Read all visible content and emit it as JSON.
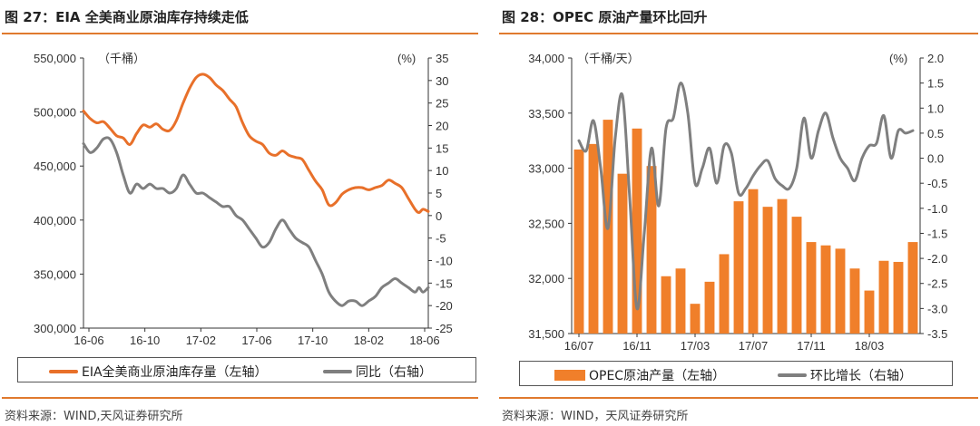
{
  "left": {
    "title": "图 27：EIA 全美商业原油库存持续走低",
    "source": "资料来源：WIND,天风证券研究所",
    "legend": [
      "EIA全美商业原油库存量（左轴）",
      "同比（右轴）"
    ],
    "colors": {
      "primary": "#e8702a",
      "secondary": "#7f7f7f"
    },
    "chart_data": {
      "type": "line",
      "left_unit": "（千桶）",
      "right_unit": "(%)",
      "x_ticks": [
        "16-06",
        "16-10",
        "17-02",
        "17-06",
        "17-10",
        "18-02",
        "18-06"
      ],
      "x_range": [
        0,
        26
      ],
      "left_axis": {
        "min": 300000,
        "max": 550000,
        "ticks": [
          "550,000",
          "500,000",
          "450,000",
          "400,000",
          "350,000",
          "300,000"
        ],
        "tick_values": [
          550000,
          500000,
          450000,
          400000,
          350000,
          300000
        ]
      },
      "right_axis": {
        "min": -25,
        "max": 35,
        "ticks": [
          "35",
          "30",
          "25",
          "20",
          "15",
          "10",
          "5",
          "0",
          "-5",
          "-10",
          "-15",
          "-20",
          "-25"
        ],
        "tick_values": [
          35,
          30,
          25,
          20,
          15,
          10,
          5,
          0,
          -5,
          -10,
          -15,
          -20,
          -25
        ]
      },
      "series": [
        {
          "name": "EIA全美商业原油库存量",
          "axis": "left",
          "x": [
            0,
            0.5,
            1.0,
            1.5,
            2.0,
            2.5,
            3.0,
            3.5,
            4.0,
            4.5,
            5.0,
            5.5,
            6.0,
            6.5,
            7.0,
            7.5,
            8.0,
            8.5,
            9.0,
            9.5,
            10.0,
            10.5,
            11.0,
            11.5,
            12.0,
            12.5,
            13.0,
            13.5,
            14.0,
            14.5,
            15.0,
            15.5,
            16.0,
            16.5,
            17.0,
            17.5,
            18.0,
            18.5,
            19.0,
            19.5,
            20.0,
            20.5,
            21.0,
            21.5,
            22.0,
            22.5,
            23.0,
            23.5,
            24.0,
            24.5,
            25.0,
            25.3,
            25.6,
            26.0
          ],
          "values": [
            501000,
            494000,
            490000,
            491000,
            485000,
            478000,
            476000,
            470000,
            480000,
            488000,
            486000,
            489000,
            484000,
            483000,
            492000,
            508000,
            522000,
            532000,
            535000,
            532000,
            525000,
            520000,
            512000,
            505000,
            490000,
            478000,
            473000,
            470000,
            462000,
            460000,
            464000,
            460000,
            458000,
            456000,
            446000,
            436000,
            428000,
            414000,
            416000,
            424000,
            428000,
            430000,
            430000,
            428000,
            430000,
            432000,
            437000,
            434000,
            430000,
            420000,
            410000,
            407000,
            410000,
            408000
          ]
        },
        {
          "name": "同比",
          "axis": "right",
          "x": [
            0,
            0.5,
            1.0,
            1.5,
            2.0,
            2.5,
            3.0,
            3.5,
            4.0,
            4.5,
            5.0,
            5.5,
            6.0,
            6.5,
            7.0,
            7.5,
            8.0,
            8.5,
            9.0,
            9.5,
            10.0,
            10.5,
            11.0,
            11.5,
            12.0,
            12.5,
            13.0,
            13.5,
            14.0,
            14.5,
            15.0,
            15.5,
            16.0,
            16.5,
            17.0,
            17.5,
            18.0,
            18.5,
            19.0,
            19.5,
            20.0,
            20.5,
            21.0,
            21.5,
            22.0,
            22.5,
            23.0,
            23.5,
            24.0,
            24.5,
            25.0,
            25.3,
            25.6,
            26.0
          ],
          "values": [
            16,
            14,
            15,
            17,
            17,
            14,
            9,
            5,
            7,
            6,
            7,
            6,
            6,
            5,
            6,
            9,
            7,
            5,
            5,
            4,
            3,
            2,
            2,
            0,
            -1,
            -3,
            -5,
            -7,
            -6,
            -3,
            -1,
            -3,
            -5,
            -6,
            -7,
            -10,
            -13,
            -17,
            -19,
            -20,
            -19,
            -19,
            -20,
            -19,
            -18,
            -16,
            -15,
            -14,
            -15,
            -16,
            -17,
            -16,
            -17,
            -16
          ]
        }
      ]
    }
  },
  "right": {
    "title": "图 28：OPEC 原油产量环比回升",
    "source": "资料来源：WIND，天风证券研究所",
    "legend": [
      "OPEC原油产量（左轴）",
      "环比增长（右轴）"
    ],
    "colors": {
      "primary": "#f07f2a",
      "secondary": "#7f7f7f"
    },
    "chart_data": {
      "type": "bar+line",
      "left_unit": "（千桶/天）",
      "right_unit": "(%)",
      "x_ticks": [
        "16/07",
        "16/11",
        "17/03",
        "17/07",
        "17/11",
        "18/03"
      ],
      "x_tick_index": [
        0,
        4,
        8,
        12,
        16,
        20
      ],
      "categories": [
        "2016-07",
        "2016-08",
        "2016-09",
        "2016-10",
        "2016-11",
        "2016-12",
        "2017-01",
        "2017-02",
        "2017-03",
        "2017-04",
        "2017-05",
        "2017-06",
        "2017-07",
        "2017-08",
        "2017-09",
        "2017-10",
        "2017-11",
        "2017-12",
        "2018-01",
        "2018-02",
        "2018-03",
        "2018-04",
        "2018-05",
        "2018-06"
      ],
      "left_axis": {
        "min": 31500,
        "max": 34000,
        "ticks": [
          "34,000",
          "33,500",
          "33,000",
          "32,500",
          "32,000",
          "31,500"
        ],
        "tick_values": [
          34000,
          33500,
          33000,
          32500,
          32000,
          31500
        ]
      },
      "right_axis": {
        "min": -3.5,
        "max": 2.0,
        "ticks": [
          "2.0",
          "1.5",
          "1.0",
          "0.5",
          "0.0",
          "-0.5",
          "-1.0",
          "-1.5",
          "-2.0",
          "-2.5",
          "-3.0",
          "-3.5"
        ],
        "tick_values": [
          2.0,
          1.5,
          1.0,
          0.5,
          0.0,
          -0.5,
          -1.0,
          -1.5,
          -2.0,
          -2.5,
          -3.0,
          -3.5
        ]
      },
      "series": [
        {
          "name": "OPEC原油产量",
          "type": "bar",
          "axis": "left",
          "values": [
            33170,
            33220,
            33440,
            32950,
            33360,
            33020,
            32020,
            32090,
            31770,
            31970,
            32220,
            32700,
            32810,
            32650,
            32720,
            32560,
            32330,
            32300,
            32270,
            32090,
            31890,
            32160,
            32150,
            32330
          ]
        },
        {
          "name": "环比增长",
          "type": "line",
          "axis": "right",
          "x": [
            0,
            0.5,
            1.0,
            1.5,
            2.0,
            2.5,
            3.0,
            3.5,
            4.0,
            4.5,
            5.0,
            5.5,
            6.0,
            6.5,
            7.0,
            7.5,
            8.0,
            8.5,
            9.0,
            9.5,
            10.0,
            10.5,
            11.0,
            11.5,
            12.0,
            12.5,
            13.0,
            13.5,
            14.0,
            14.5,
            15.0,
            15.5,
            16.0,
            16.5,
            17.0,
            17.5,
            18.0,
            18.5,
            19.0,
            19.5,
            20.0,
            20.5,
            21.0,
            21.5,
            22.0,
            22.5,
            23.0
          ],
          "values": [
            0.35,
            0.15,
            0.75,
            -0.2,
            -1.4,
            0.4,
            1.25,
            -0.8,
            -3.0,
            -1.5,
            0.2,
            -0.95,
            0.6,
            0.8,
            1.5,
            0.9,
            -0.5,
            -0.2,
            0.2,
            -0.5,
            0.25,
            0.1,
            -0.7,
            -0.6,
            -0.35,
            -0.15,
            -0.05,
            -0.4,
            -0.55,
            -0.6,
            -0.2,
            0.8,
            0.0,
            0.55,
            0.9,
            0.4,
            0.0,
            -0.2,
            -0.45,
            0.0,
            0.25,
            0.3,
            0.85,
            0.0,
            0.55,
            0.5,
            0.55
          ]
        }
      ]
    }
  }
}
